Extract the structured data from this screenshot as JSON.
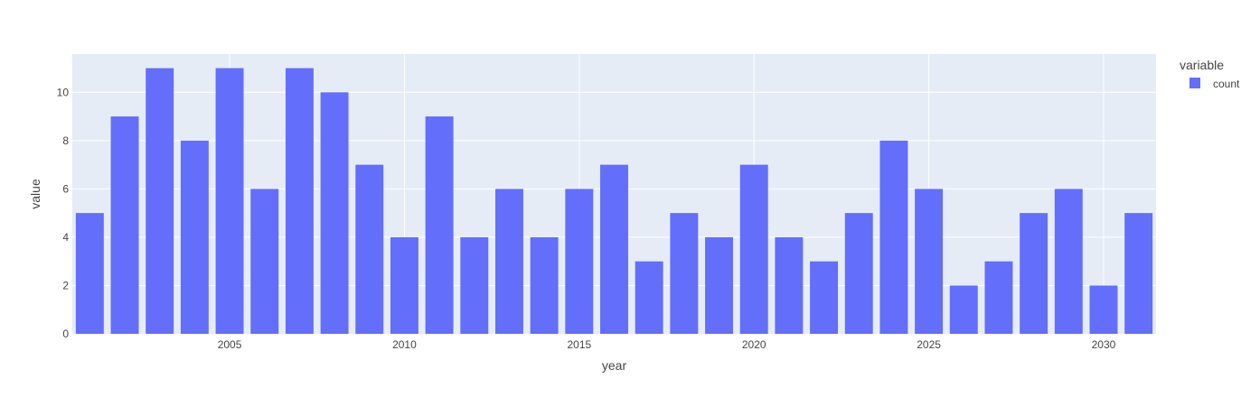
{
  "chart_data": {
    "type": "bar",
    "xlabel": "year",
    "ylabel": "value",
    "legend": {
      "title": "variable",
      "placement": "top-right"
    },
    "series": [
      {
        "name": "count",
        "x": [
          2001,
          2002,
          2003,
          2004,
          2005,
          2006,
          2007,
          2008,
          2009,
          2010,
          2011,
          2012,
          2013,
          2014,
          2015,
          2016,
          2017,
          2018,
          2019,
          2020,
          2021,
          2022,
          2023,
          2024,
          2025,
          2026,
          2027,
          2028,
          2029,
          2030,
          2031
        ],
        "values": [
          5,
          9,
          11,
          8,
          11,
          6,
          11,
          10,
          7,
          4,
          9,
          4,
          6,
          4,
          6,
          7,
          3,
          5,
          4,
          7,
          4,
          3,
          5,
          8,
          6,
          2,
          3,
          5,
          6,
          2,
          5
        ]
      }
    ],
    "x_ticks": [
      2005,
      2010,
      2015,
      2020,
      2025,
      2030
    ],
    "y_ticks": [
      0,
      2,
      4,
      6,
      8,
      10
    ],
    "xlim": [
      2000.5,
      2031.5
    ],
    "ylim": [
      0,
      11.58
    ],
    "grid": true,
    "colors": {
      "bar": "#636efa",
      "plot_bg": "#e5ecf6",
      "grid": "#ffffff",
      "text": "#444444"
    }
  }
}
